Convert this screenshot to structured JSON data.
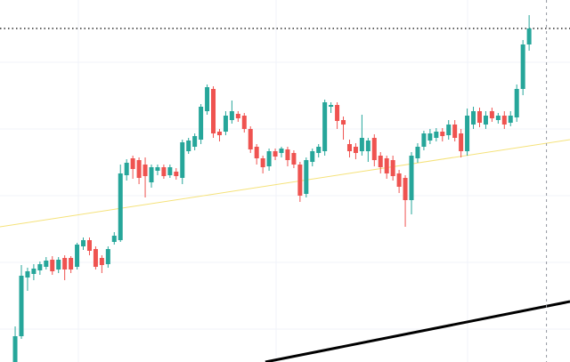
{
  "chart_data": {
    "type": "candlestick",
    "xlim": [
      -2.45,
      89.6
    ],
    "ylim": [
      0,
      407
    ],
    "up_color": "#26a69a",
    "down_color": "#ef5350",
    "open": [
      0,
      29,
      95,
      99,
      103,
      107,
      115,
      104,
      117,
      117,
      107,
      130,
      137,
      127,
      117,
      110,
      135,
      137,
      210,
      229,
      227,
      222,
      202,
      215,
      219,
      210,
      214,
      207,
      237,
      242,
      250,
      282,
      307,
      259,
      259,
      272,
      279,
      277,
      262,
      242,
      229,
      220,
      237,
      235,
      239,
      235,
      222,
      189,
      225,
      235,
      237,
      287,
      289,
      272,
      245,
      242,
      237,
      237,
      252,
      232,
      229,
      227,
      212,
      207,
      182,
      229,
      242,
      249,
      252,
      259,
      255,
      267,
      257,
      237,
      267,
      282,
      267,
      282,
      272,
      277,
      269,
      275,
      307,
      357
    ],
    "high": [
      40,
      109,
      106,
      110,
      113,
      118,
      119,
      118,
      120,
      119,
      134,
      140,
      140,
      130,
      120,
      130,
      146,
      222,
      228,
      232,
      230,
      230,
      222,
      222,
      222,
      222,
      218,
      250,
      252,
      257,
      290,
      312,
      310,
      262,
      282,
      294,
      282,
      280,
      265,
      245,
      232,
      240,
      240,
      242,
      242,
      238,
      225,
      230,
      240,
      245,
      295,
      292,
      292,
      276,
      250,
      246,
      278,
      252,
      256,
      236,
      232,
      232,
      216,
      210,
      236,
      246,
      260,
      262,
      263,
      263,
      272,
      272,
      262,
      285,
      287,
      286,
      282,
      286,
      280,
      282,
      282,
      312,
      362,
      390
    ],
    "low": [
      0,
      26,
      80,
      92,
      98,
      104,
      98,
      100,
      92,
      100,
      104,
      126,
      120,
      104,
      100,
      106,
      132,
      135,
      204,
      206,
      200,
      185,
      196,
      210,
      206,
      207,
      205,
      200,
      234,
      238,
      245,
      278,
      252,
      248,
      255,
      268,
      270,
      258,
      235,
      222,
      212,
      215,
      227,
      230,
      220,
      218,
      180,
      185,
      220,
      230,
      232,
      280,
      262,
      250,
      230,
      228,
      232,
      225,
      220,
      212,
      206,
      204,
      190,
      152,
      166,
      224,
      238,
      245,
      248,
      248,
      250,
      248,
      230,
      232,
      262,
      264,
      262,
      270,
      268,
      262,
      265,
      270,
      300,
      350
    ],
    "close": [
      29,
      97,
      102,
      105,
      110,
      114,
      102,
      115,
      104,
      104,
      132,
      137,
      125,
      107,
      109,
      127,
      142,
      212,
      224,
      217,
      207,
      209,
      219,
      219,
      209,
      219,
      209,
      247,
      249,
      254,
      287,
      309,
      257,
      255,
      277,
      282,
      274,
      262,
      239,
      229,
      219,
      237,
      231,
      240,
      227,
      222,
      187,
      227,
      237,
      242,
      292,
      289,
      271,
      267,
      237,
      235,
      252,
      249,
      227,
      219,
      212,
      209,
      197,
      182,
      232,
      242,
      257,
      257,
      259,
      254,
      267,
      252,
      237,
      277,
      282,
      269,
      277,
      274,
      277,
      267,
      277,
      307,
      357,
      375
    ],
    "price_line": 375,
    "crosshair_x": 85.8,
    "trendlines": [
      {
        "color": "#f5e27a",
        "x": [
          -2.45,
          89.6
        ],
        "y": [
          152,
          250
        ]
      },
      {
        "color": "#000000",
        "x": [
          40.4,
          89.6
        ],
        "y": [
          0,
          68
        ]
      }
    ]
  }
}
